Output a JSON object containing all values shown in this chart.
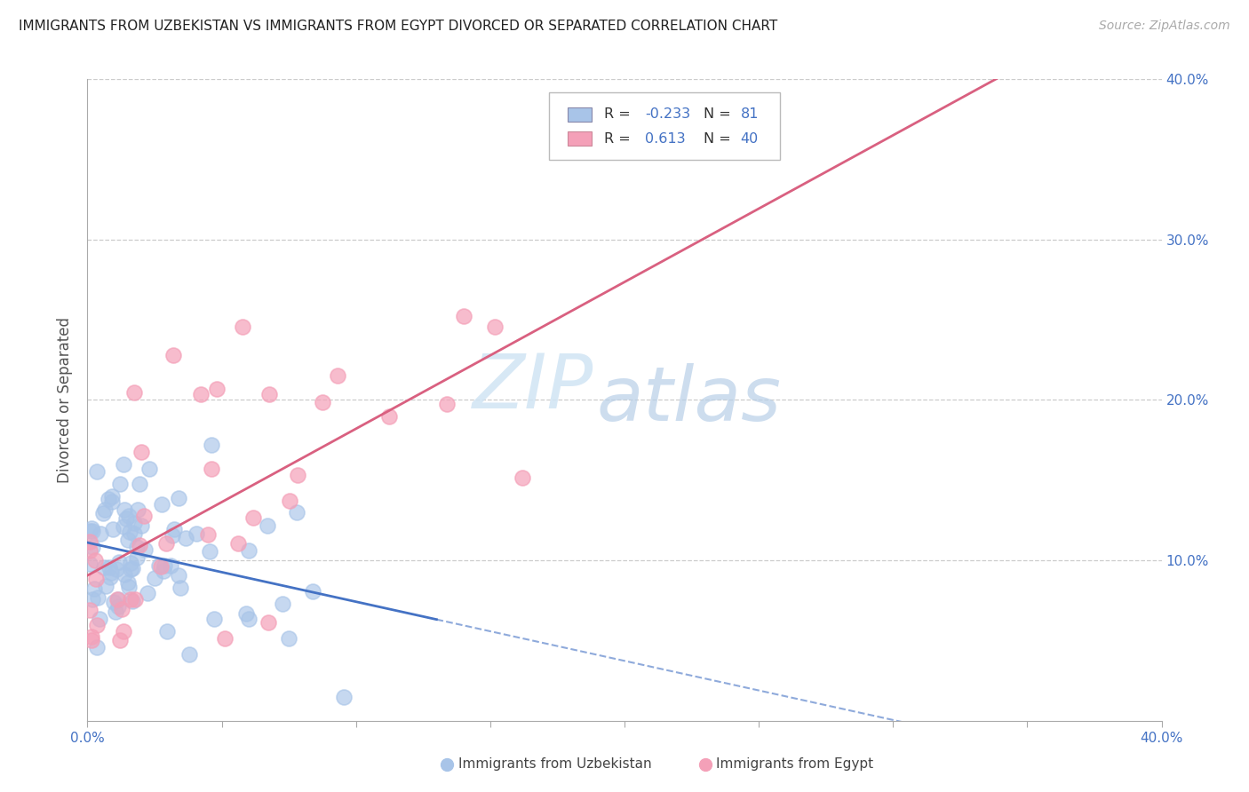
{
  "title": "IMMIGRANTS FROM UZBEKISTAN VS IMMIGRANTS FROM EGYPT DIVORCED OR SEPARATED CORRELATION CHART",
  "source": "Source: ZipAtlas.com",
  "ylabel": "Divorced or Separated",
  "xlim": [
    0.0,
    0.4
  ],
  "ylim": [
    0.0,
    0.4
  ],
  "color_uzbekistan": "#a8c4e8",
  "color_egypt": "#f4a0b8",
  "color_uzbekistan_line": "#4472c4",
  "color_egypt_line": "#d96080",
  "color_grid": "#cccccc",
  "watermark_zip": "ZIP",
  "watermark_atlas": "atlas",
  "r_uzb": -0.233,
  "n_uzb": 81,
  "r_egy": 0.613,
  "n_egy": 40,
  "uzbekistan_seed": 7,
  "egypt_seed": 13
}
